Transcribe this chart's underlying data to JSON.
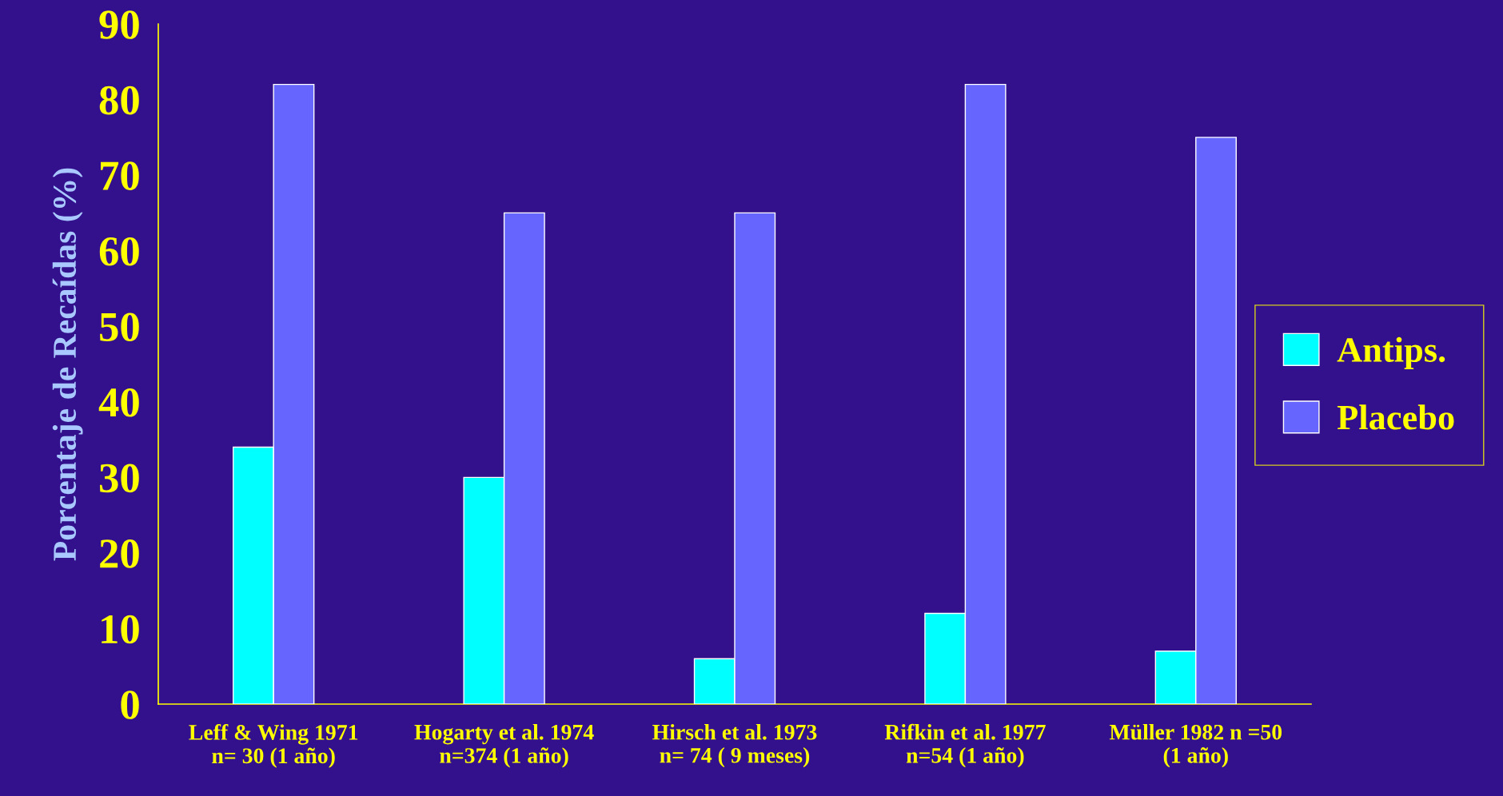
{
  "chart_data": {
    "type": "bar",
    "ylabel": "Porcentaje de Recaídas (%)",
    "categories": [
      "Leff & Wing 1971\nn= 30 (1 año)",
      "Hogarty et al. 1974\nn=374 (1 año)",
      "Hirsch et al. 1973\nn= 74 ( 9 meses)",
      "Rifkin et al. 1977\nn=54 (1 año)",
      "Müller 1982 n =50\n(1 año)"
    ],
    "series": [
      {
        "name": "Antips.",
        "color": "#00ffff",
        "values": [
          34,
          30,
          6,
          12,
          7
        ]
      },
      {
        "name": "Placebo",
        "color": "#6666ff",
        "values": [
          82,
          65,
          65,
          82,
          75
        ]
      }
    ],
    "ylim": [
      0,
      90
    ],
    "yticks": [
      0,
      10,
      20,
      30,
      40,
      50,
      60,
      70,
      80,
      90
    ],
    "grid": false,
    "legend": "right"
  }
}
